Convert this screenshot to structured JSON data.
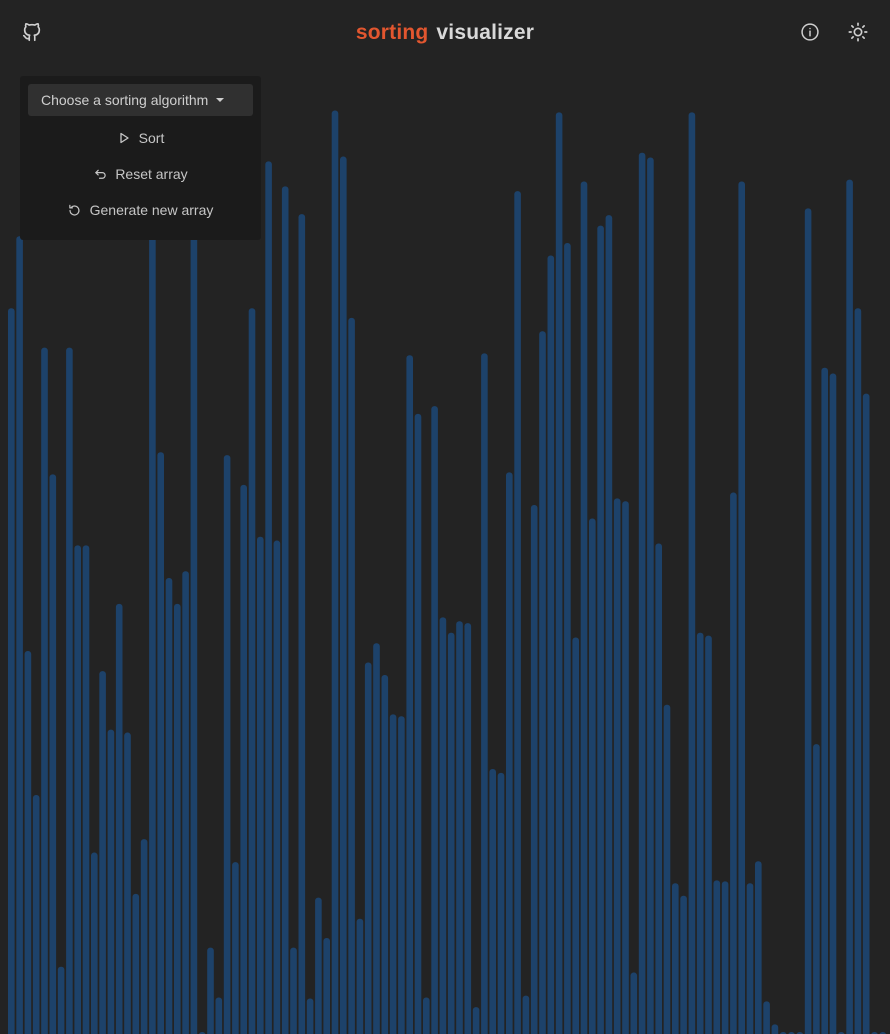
{
  "header": {
    "title_accent": "sorting",
    "title_main": "visualizer",
    "github_icon": "github-icon",
    "info_icon": "info-icon",
    "theme_icon": "sun-icon",
    "accent_color": "#e2562f"
  },
  "controls": {
    "algorithm_select": "Choose a sorting algorithm",
    "sort_label": "Sort",
    "reset_label": "Reset array",
    "generate_label": "Generate new array"
  },
  "array": {
    "bar_color": "#1d426a",
    "max_value": 1000,
    "values": [
      756,
      831,
      399,
      249,
      715,
      583,
      70,
      715,
      509,
      509,
      189,
      378,
      317,
      448,
      314,
      146,
      203,
      891,
      606,
      475,
      448,
      482,
      864,
      0,
      90,
      38,
      603,
      179,
      572,
      756,
      518,
      909,
      514,
      883,
      90,
      854,
      37,
      142,
      100,
      962,
      914,
      746,
      120,
      387,
      407,
      374,
      333,
      331,
      707,
      646,
      38,
      654,
      434,
      418,
      430,
      428,
      28,
      709,
      276,
      272,
      585,
      878,
      40,
      551,
      732,
      811,
      960,
      824,
      413,
      888,
      537,
      842,
      853,
      558,
      555,
      64,
      918,
      913,
      511,
      343,
      157,
      144,
      960,
      418,
      415,
      160,
      159,
      564,
      888,
      157,
      180,
      34,
      10,
      0,
      0,
      0,
      860,
      302,
      694,
      688,
      0,
      890,
      756,
      667,
      0,
      0
    ]
  }
}
